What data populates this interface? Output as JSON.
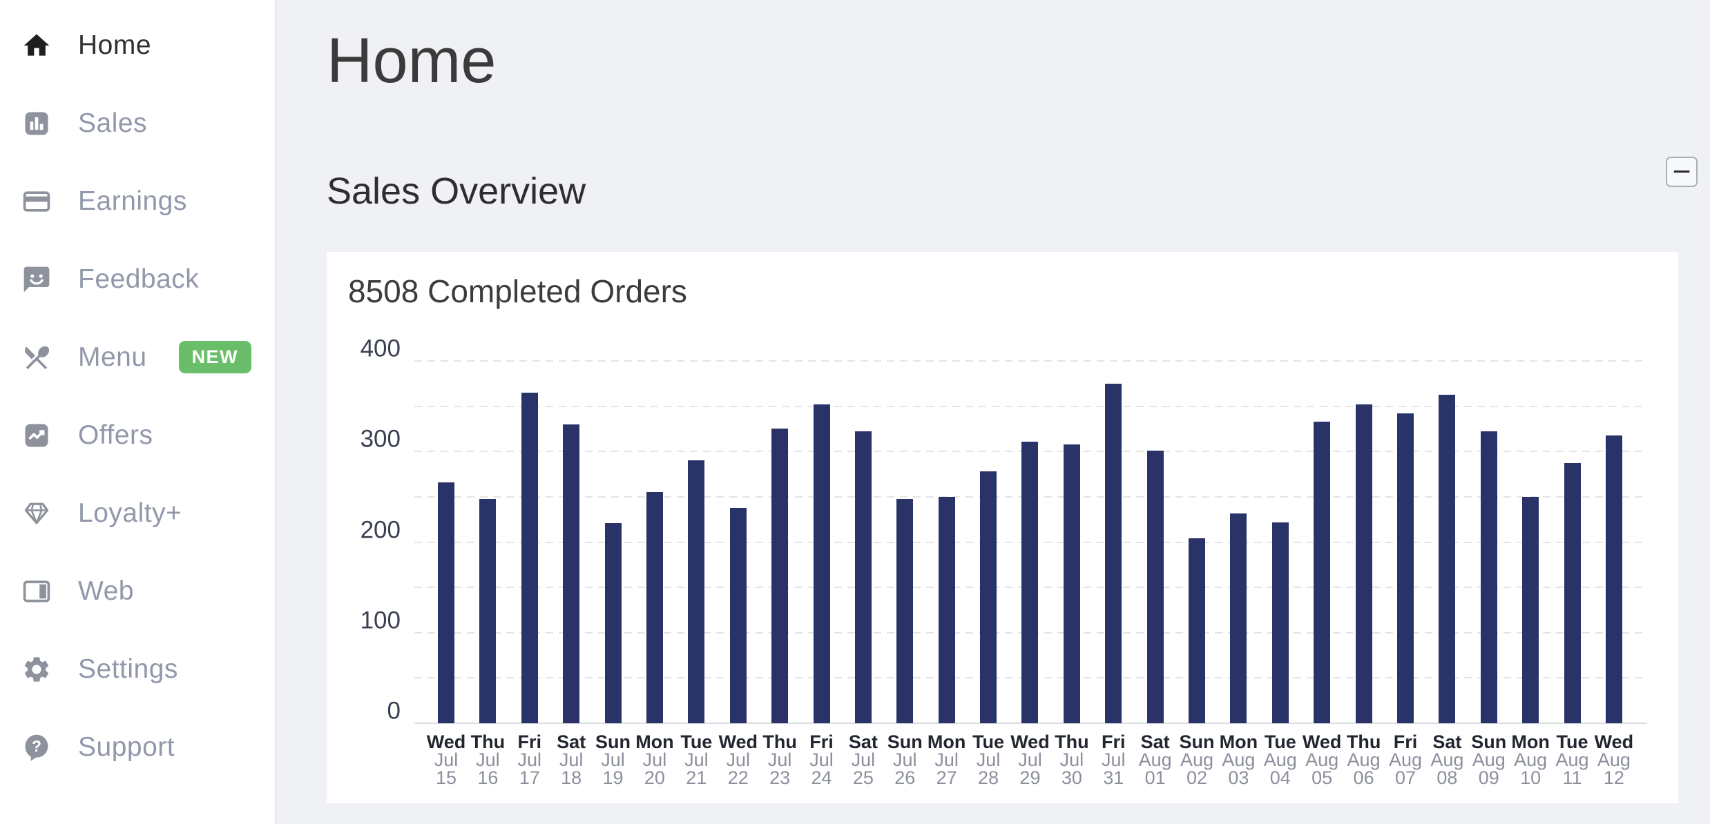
{
  "sidebar": {
    "items": [
      {
        "label": "Home",
        "icon": "home-icon",
        "active": true
      },
      {
        "label": "Sales",
        "icon": "sales-icon",
        "active": false
      },
      {
        "label": "Earnings",
        "icon": "earnings-icon",
        "active": false
      },
      {
        "label": "Feedback",
        "icon": "feedback-icon",
        "active": false
      },
      {
        "label": "Menu",
        "icon": "menu-icon",
        "active": false,
        "badge": "NEW"
      },
      {
        "label": "Offers",
        "icon": "offers-icon",
        "active": false
      },
      {
        "label": "Loyalty+",
        "icon": "loyalty-icon",
        "active": false
      },
      {
        "label": "Web",
        "icon": "web-icon",
        "active": false
      },
      {
        "label": "Settings",
        "icon": "settings-icon",
        "active": false
      },
      {
        "label": "Support",
        "icon": "support-icon",
        "active": false
      }
    ],
    "badge_color": "#6abe6a"
  },
  "header": {
    "page_title": "Home",
    "section_title": "Sales Overview",
    "collapse_button_label": "−"
  },
  "chart_data": {
    "type": "bar",
    "title": "8508 Completed Orders",
    "total_completed_orders": 8508,
    "bar_color": "#293368",
    "grid_color": "#e4e4e4",
    "axis_color": "#d9dce1",
    "ylim": [
      0,
      400
    ],
    "y_ticks": [
      0,
      100,
      200,
      300,
      400
    ],
    "gridline_step": 50,
    "grid": true,
    "legend": false,
    "categories": [
      {
        "weekday": "Wed",
        "month": "Jul",
        "day": "15"
      },
      {
        "weekday": "Thu",
        "month": "Jul",
        "day": "16"
      },
      {
        "weekday": "Fri",
        "month": "Jul",
        "day": "17"
      },
      {
        "weekday": "Sat",
        "month": "Jul",
        "day": "18"
      },
      {
        "weekday": "Sun",
        "month": "Jul",
        "day": "19"
      },
      {
        "weekday": "Mon",
        "month": "Jul",
        "day": "20"
      },
      {
        "weekday": "Tue",
        "month": "Jul",
        "day": "21"
      },
      {
        "weekday": "Wed",
        "month": "Jul",
        "day": "22"
      },
      {
        "weekday": "Thu",
        "month": "Jul",
        "day": "23"
      },
      {
        "weekday": "Fri",
        "month": "Jul",
        "day": "24"
      },
      {
        "weekday": "Sat",
        "month": "Jul",
        "day": "25"
      },
      {
        "weekday": "Sun",
        "month": "Jul",
        "day": "26"
      },
      {
        "weekday": "Mon",
        "month": "Jul",
        "day": "27"
      },
      {
        "weekday": "Tue",
        "month": "Jul",
        "day": "28"
      },
      {
        "weekday": "Wed",
        "month": "Jul",
        "day": "29"
      },
      {
        "weekday": "Thu",
        "month": "Jul",
        "day": "30"
      },
      {
        "weekday": "Fri",
        "month": "Jul",
        "day": "31"
      },
      {
        "weekday": "Sat",
        "month": "Aug",
        "day": "01"
      },
      {
        "weekday": "Sun",
        "month": "Aug",
        "day": "02"
      },
      {
        "weekday": "Mon",
        "month": "Aug",
        "day": "03"
      },
      {
        "weekday": "Tue",
        "month": "Aug",
        "day": "04"
      },
      {
        "weekday": "Wed",
        "month": "Aug",
        "day": "05"
      },
      {
        "weekday": "Thu",
        "month": "Aug",
        "day": "06"
      },
      {
        "weekday": "Fri",
        "month": "Aug",
        "day": "07"
      },
      {
        "weekday": "Sat",
        "month": "Aug",
        "day": "08"
      },
      {
        "weekday": "Sun",
        "month": "Aug",
        "day": "09"
      },
      {
        "weekday": "Mon",
        "month": "Aug",
        "day": "10"
      },
      {
        "weekday": "Tue",
        "month": "Aug",
        "day": "11"
      },
      {
        "weekday": "Wed",
        "month": "Aug",
        "day": "12"
      }
    ],
    "values": [
      266,
      248,
      365,
      330,
      221,
      255,
      290,
      238,
      325,
      352,
      322,
      248,
      250,
      278,
      311,
      308,
      375,
      301,
      204,
      232,
      222,
      333,
      352,
      342,
      363,
      322,
      250,
      287,
      318
    ]
  }
}
